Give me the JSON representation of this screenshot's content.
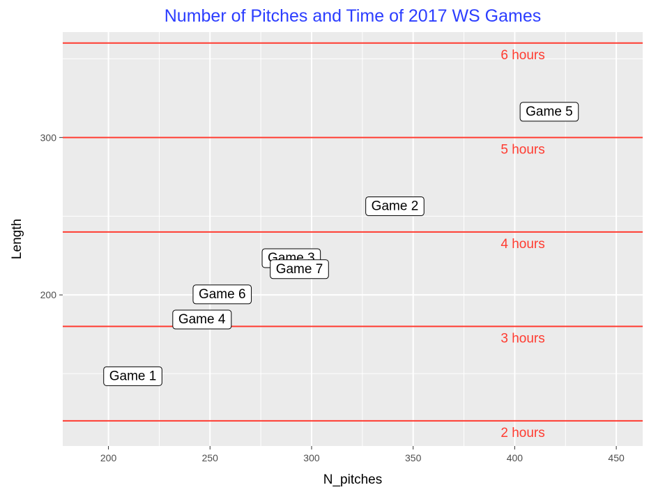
{
  "chart_data": {
    "type": "scatter",
    "title": "Number of Pitches and Time of 2017 WS Games",
    "xlabel": "N_pitches",
    "ylabel": "Length",
    "xlim": [
      177.5,
      463
    ],
    "ylim": [
      104,
      367
    ],
    "x_ticks": [
      200,
      250,
      300,
      350,
      400,
      450
    ],
    "y_ticks": [
      200,
      300
    ],
    "points": [
      {
        "label": "Game 1",
        "x": 212,
        "y": 149
      },
      {
        "label": "Game 2",
        "x": 341,
        "y": 257
      },
      {
        "label": "Game 3",
        "x": 290,
        "y": 224
      },
      {
        "label": "Game 4",
        "x": 246,
        "y": 185
      },
      {
        "label": "Game 5",
        "x": 417,
        "y": 317
      },
      {
        "label": "Game 6",
        "x": 256,
        "y": 201
      },
      {
        "label": "Game 7",
        "x": 294,
        "y": 217
      }
    ],
    "reference_lines": [
      {
        "y": 120,
        "label": "2 hours"
      },
      {
        "y": 180,
        "label": "3 hours"
      },
      {
        "y": 240,
        "label": "4 hours"
      },
      {
        "y": 300,
        "label": "5 hours"
      },
      {
        "y": 360,
        "label": "6 hours"
      }
    ],
    "reference_label_x": 404,
    "grid": true,
    "colors": {
      "title": "#2b3dff",
      "reference_lines": "#ff3b30",
      "panel_background": "#ebebeb",
      "grid": "#ffffff"
    }
  }
}
